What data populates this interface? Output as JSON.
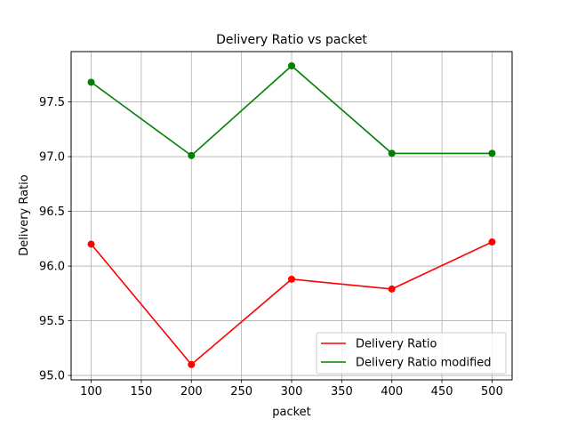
{
  "chart_data": {
    "type": "line",
    "title": "Delivery Ratio vs packet",
    "xlabel": "packet",
    "ylabel": "Delivery Ratio",
    "x": [
      100,
      200,
      300,
      400,
      500
    ],
    "xlim": [
      80,
      520
    ],
    "ylim": [
      94.96,
      97.96
    ],
    "xticks": [
      100,
      150,
      200,
      250,
      300,
      350,
      400,
      450,
      500
    ],
    "yticks": [
      95.0,
      95.5,
      96.0,
      96.5,
      97.0,
      97.5
    ],
    "ytick_labels": [
      "95.0",
      "95.5",
      "96.0",
      "96.5",
      "97.0",
      "97.5"
    ],
    "grid": true,
    "markers": true,
    "legend_position": "bottom-right",
    "series": [
      {
        "name": "Delivery Ratio",
        "color": "#ff0000",
        "values": [
          96.2,
          95.1,
          95.88,
          95.79,
          96.22
        ]
      },
      {
        "name": "Delivery Ratio modified",
        "color": "#008000",
        "values": [
          97.68,
          97.01,
          97.83,
          97.03,
          97.03
        ]
      }
    ]
  }
}
